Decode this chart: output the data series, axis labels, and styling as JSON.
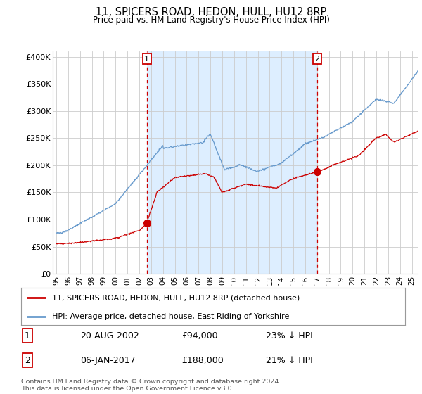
{
  "title": "11, SPICERS ROAD, HEDON, HULL, HU12 8RP",
  "subtitle": "Price paid vs. HM Land Registry's House Price Index (HPI)",
  "ylabel_ticks": [
    "£0",
    "£50K",
    "£100K",
    "£150K",
    "£200K",
    "£250K",
    "£300K",
    "£350K",
    "£400K"
  ],
  "ytick_values": [
    0,
    50000,
    100000,
    150000,
    200000,
    250000,
    300000,
    350000,
    400000
  ],
  "ylim": [
    0,
    410000
  ],
  "xlim_start": 1994.7,
  "xlim_end": 2025.5,
  "red_color": "#cc0000",
  "blue_color": "#6699cc",
  "blue_fill_color": "#ddeeff",
  "grid_color": "#cccccc",
  "bg_color": "#ffffff",
  "marker1_x": 2002.64,
  "marker1_y": 94000,
  "marker1_label": "1",
  "marker1_date": "20-AUG-2002",
  "marker1_price": "£94,000",
  "marker1_hpi": "23% ↓ HPI",
  "marker2_x": 2017.02,
  "marker2_y": 188000,
  "marker2_label": "2",
  "marker2_date": "06-JAN-2017",
  "marker2_price": "£188,000",
  "marker2_hpi": "21% ↓ HPI",
  "legend_label_red": "11, SPICERS ROAD, HEDON, HULL, HU12 8RP (detached house)",
  "legend_label_blue": "HPI: Average price, detached house, East Riding of Yorkshire",
  "footer": "Contains HM Land Registry data © Crown copyright and database right 2024.\nThis data is licensed under the Open Government Licence v3.0.",
  "xtick_years": [
    1995,
    1996,
    1997,
    1998,
    1999,
    2000,
    2001,
    2002,
    2003,
    2004,
    2005,
    2006,
    2007,
    2008,
    2009,
    2010,
    2011,
    2012,
    2013,
    2014,
    2015,
    2016,
    2017,
    2018,
    2019,
    2020,
    2021,
    2022,
    2023,
    2024,
    2025
  ]
}
